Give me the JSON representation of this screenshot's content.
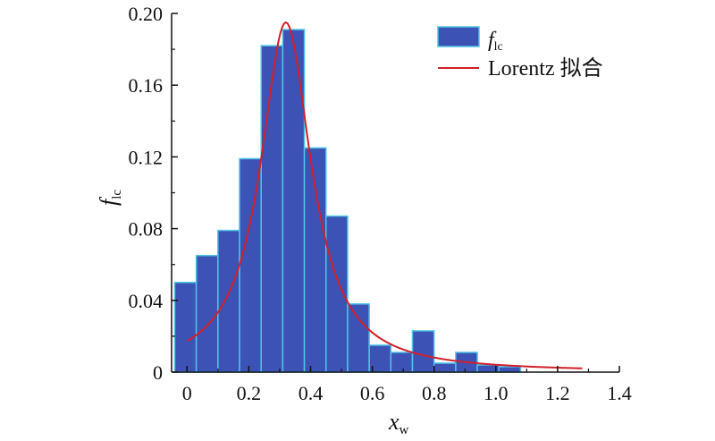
{
  "chart_data": {
    "type": "bar",
    "subtype": "histogram-with-fit-line",
    "xlabel": {
      "main": "x",
      "sub": "w"
    },
    "ylabel": {
      "main": "f",
      "sub": "lc"
    },
    "xlim": [
      -0.05,
      1.4
    ],
    "ylim": [
      0,
      0.2
    ],
    "xticks": [
      0,
      0.2,
      0.4,
      0.6,
      0.8,
      1.0,
      1.2,
      1.4
    ],
    "xtick_labels": [
      "0",
      "0.2",
      "0.4",
      "0.6",
      "0.8",
      "1.0",
      "1.2",
      "1.4"
    ],
    "yticks": [
      0,
      0.04,
      0.08,
      0.12,
      0.16,
      0.2
    ],
    "ytick_labels": [
      "0",
      "0.04",
      "0.08",
      "0.12",
      "0.16",
      "0.20"
    ],
    "bin_width": 0.07,
    "bins": [
      {
        "x0": -0.04,
        "x1": 0.03,
        "value": 0.05
      },
      {
        "x0": 0.03,
        "x1": 0.1,
        "value": 0.065
      },
      {
        "x0": 0.1,
        "x1": 0.17,
        "value": 0.079
      },
      {
        "x0": 0.17,
        "x1": 0.24,
        "value": 0.119
      },
      {
        "x0": 0.24,
        "x1": 0.31,
        "value": 0.182
      },
      {
        "x0": 0.31,
        "x1": 0.38,
        "value": 0.191
      },
      {
        "x0": 0.38,
        "x1": 0.45,
        "value": 0.125
      },
      {
        "x0": 0.45,
        "x1": 0.52,
        "value": 0.087
      },
      {
        "x0": 0.52,
        "x1": 0.59,
        "value": 0.038
      },
      {
        "x0": 0.59,
        "x1": 0.66,
        "value": 0.015
      },
      {
        "x0": 0.66,
        "x1": 0.73,
        "value": 0.011
      },
      {
        "x0": 0.73,
        "x1": 0.8,
        "value": 0.023
      },
      {
        "x0": 0.8,
        "x1": 0.87,
        "value": 0.005
      },
      {
        "x0": 0.87,
        "x1": 0.94,
        "value": 0.011
      },
      {
        "x0": 0.94,
        "x1": 1.01,
        "value": 0.004
      },
      {
        "x0": 1.01,
        "x1": 1.08,
        "value": 0.003
      }
    ],
    "fit": {
      "name": "Lorentz 拟合",
      "model": "lorentz",
      "peak_x": 0.32,
      "peak_y": 0.195,
      "fwhm": 0.2,
      "x_range": [
        0.0,
        1.28
      ]
    },
    "legend": {
      "placement": "top-right",
      "entries": [
        {
          "label_main": "f",
          "label_sub": "lc",
          "kind": "bar"
        },
        {
          "label": "Lorentz 拟合",
          "kind": "line"
        }
      ]
    },
    "colors": {
      "bar_fill": "#3d52b5",
      "bar_edge": "#4fc3e8",
      "fit_line": "#d0202a",
      "axis": "#111111"
    },
    "grid": false
  }
}
